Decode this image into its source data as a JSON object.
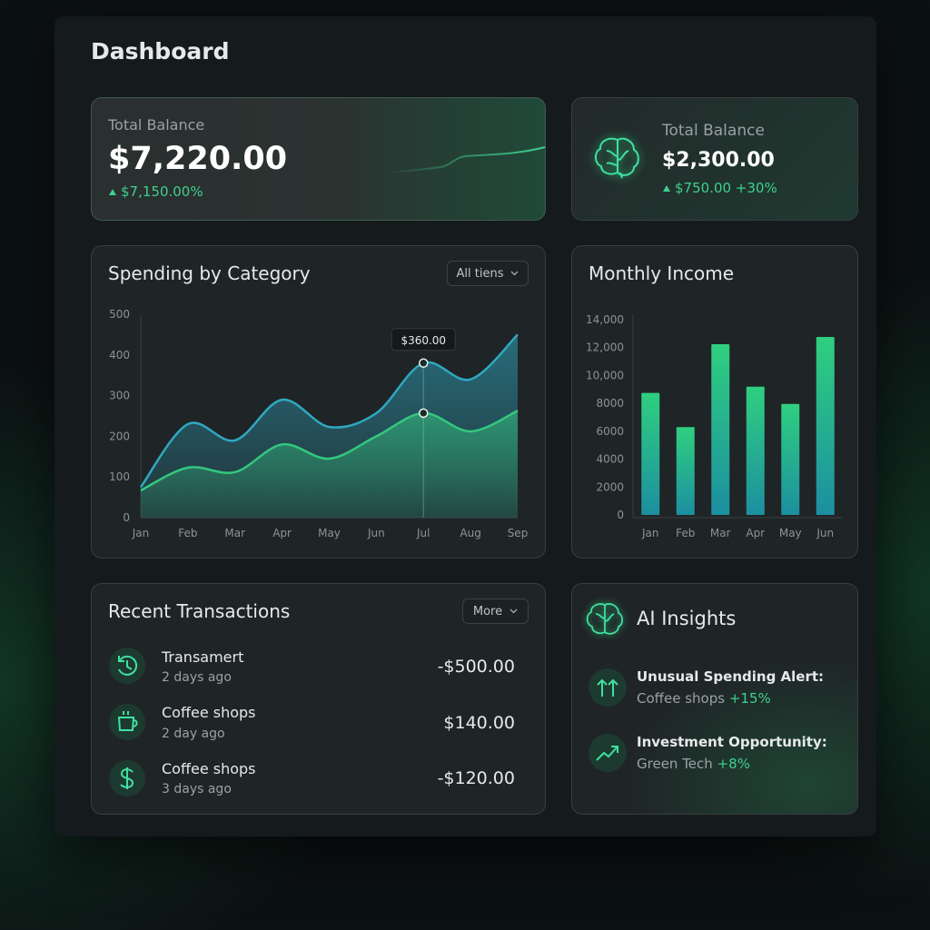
{
  "header": {
    "title": "Dashboard"
  },
  "balance_cards": [
    {
      "label": "Total Balance",
      "amount": "$7,220.00",
      "change": "$7,150.00%"
    },
    {
      "label": "Total Balance",
      "amount": "$2,300.00",
      "change": "$750.00 +30%"
    }
  ],
  "chart_data": [
    {
      "type": "area",
      "title": "Spending by Category",
      "filter": "All tiens",
      "categories": [
        "Jan",
        "Feb",
        "Mar",
        "Apr",
        "May",
        "Jun",
        "Jul",
        "Aug",
        "Sep"
      ],
      "series": [
        {
          "color": "#2fa8c0",
          "values": [
            75,
            230,
            190,
            290,
            223,
            257,
            380,
            340,
            450
          ]
        },
        {
          "color": "#34c77f",
          "values": [
            67,
            123,
            112,
            180,
            145,
            200,
            257,
            212,
            263
          ]
        }
      ],
      "ylim": [
        0,
        500
      ],
      "yticks": [
        0,
        100,
        200,
        300,
        400,
        500
      ],
      "grid": false,
      "tooltip": "$360.00"
    },
    {
      "type": "bar",
      "title": "Monthly Income",
      "categories": [
        "Jan",
        "Feb",
        "Mar",
        "Apr",
        "May",
        "Jun"
      ],
      "values": [
        8750,
        6300,
        12240,
        9200,
        7960,
        12760
      ],
      "color": "#2fcf7f",
      "ylim": [
        0,
        14000
      ],
      "yticks": [
        0,
        2000,
        4000,
        6000,
        8000,
        {
          "value": 10000,
          "label": "10,000"
        },
        {
          "value": 12000,
          "label": "12,000"
        },
        {
          "value": 14000,
          "label": "14,000"
        }
      ],
      "grid": false
    }
  ],
  "transactions": {
    "title": "Recent Transactions",
    "menu": "More",
    "items": [
      {
        "name": "Transamert",
        "time": "2 days ago",
        "amount": "-$500.00"
      },
      {
        "name": "Coffee shops",
        "time": "2 day ago",
        "amount": "$140.00"
      },
      {
        "name": "Coffee shops",
        "time": "3 days ago",
        "amount": "-$120.00"
      }
    ]
  },
  "insights": {
    "title": "AI Insights",
    "items": [
      {
        "title": "Unusual Spending Alert:",
        "text": "Coffee shops",
        "change": "+15%"
      },
      {
        "title": "Investment Opportunity:",
        "text": "Green Tech",
        "change": "+8%"
      }
    ]
  }
}
